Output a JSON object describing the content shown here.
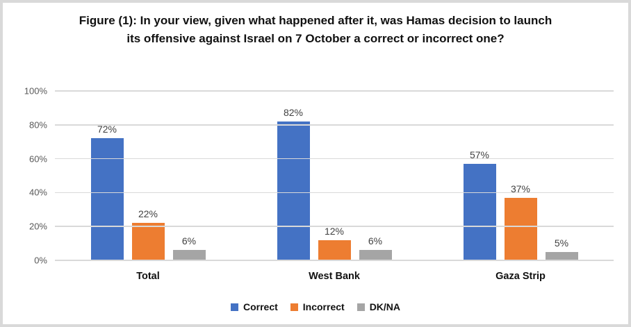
{
  "chart_data": {
    "type": "bar",
    "title": "Figure (1): In your view, given what happened after it, was Hamas decision to launch its offensive against Israel on 7 October a correct or incorrect one?",
    "categories": [
      "Total",
      "West Bank",
      "Gaza Strip"
    ],
    "series": [
      {
        "name": "Correct",
        "color": "#4472C4",
        "values": [
          72,
          82,
          57
        ],
        "labels": [
          "72%",
          "82%",
          "57%"
        ]
      },
      {
        "name": "Incorrect",
        "color": "#ED7D31",
        "values": [
          22,
          12,
          37
        ],
        "labels": [
          "22%",
          "12%",
          "37%"
        ]
      },
      {
        "name": "DK/NA",
        "color": "#A5A5A5",
        "values": [
          6,
          6,
          5
        ],
        "labels": [
          "6%",
          "6%",
          "5%"
        ]
      }
    ],
    "xlabel": "",
    "ylabel": "",
    "ylim": [
      0,
      100
    ],
    "yticks": [
      "0%",
      "20%",
      "40%",
      "60%",
      "80%",
      "100%"
    ],
    "grid": true,
    "legend_position": "bottom",
    "gridline_color": "#d9d9d9",
    "tick_label_color": "#595959",
    "data_label_color": "#404040"
  }
}
